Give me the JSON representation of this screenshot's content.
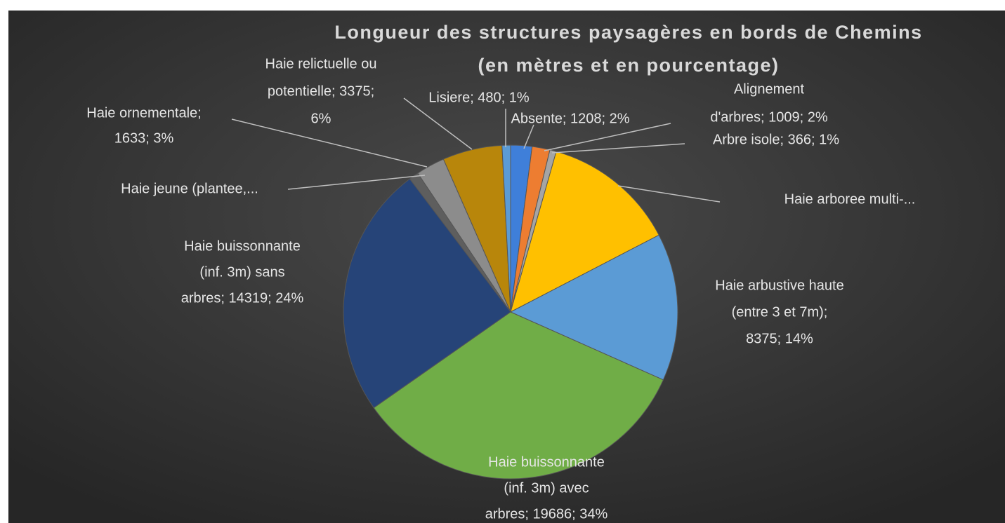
{
  "chart_data": {
    "type": "pie",
    "title": "Longueur des structures paysagères en bords de Chemins",
    "subtitle": "(en mètres et en pourcentage)",
    "values": [
      1208,
      1009,
      366,
      7600,
      8375,
      19686,
      14319,
      550,
      1633,
      3375,
      480
    ],
    "value_labels": [
      [
        "Absente; 1208; 2%"
      ],
      [
        "Alignement",
        "d'arbres; 1009; 2%"
      ],
      [
        "Arbre isole; 366; 1%"
      ],
      [
        "Haie arboree multi-..."
      ],
      [
        "Haie arbustive haute",
        "(entre 3 et 7m);",
        "8375; 14%"
      ],
      [
        "Haie buissonnante",
        "(inf. 3m) avec",
        "arbres; 19686; 34%"
      ],
      [
        "Haie buissonnante",
        "(inf. 3m) sans",
        "arbres; 14319; 24%"
      ],
      [
        "Haie jeune (plantee,..."
      ],
      [
        "Haie ornementale;",
        "1633; 3%"
      ],
      [
        "Haie relictuelle ou",
        "potentielle; 3375;",
        "6%"
      ],
      [
        "Lisiere; 480; 1%"
      ]
    ],
    "colors": [
      "#3f7fd9",
      "#ed7d31",
      "#a5a5a5",
      "#ffc000",
      "#5b9bd5",
      "#70ad47",
      "#264478",
      "#5e5e5e",
      "#8c8c8c",
      "#b8860b",
      "#5b9bd5"
    ]
  }
}
